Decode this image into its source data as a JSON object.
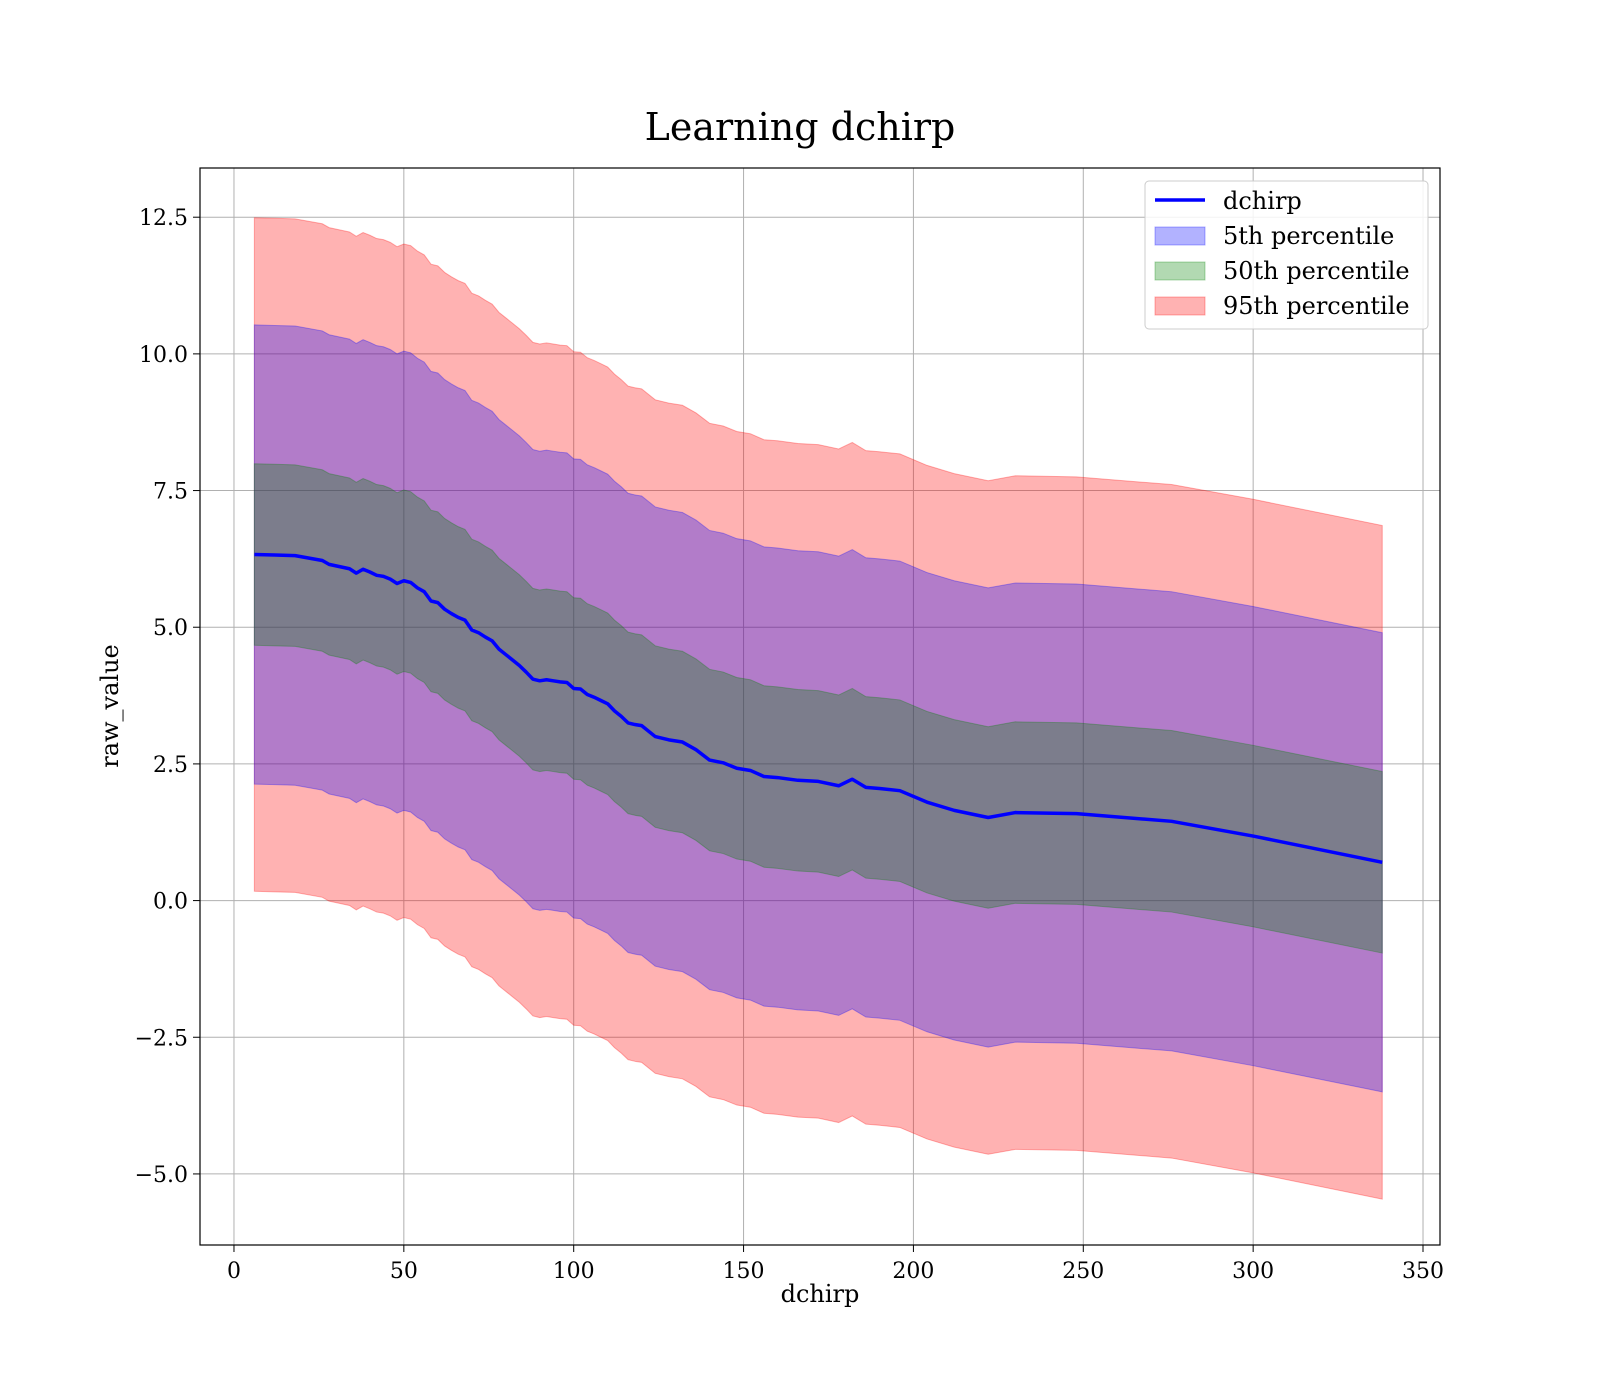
{
  "colors": {
    "line": "#0000ff",
    "band_5th": "#0000ff",
    "band_50th": "#008000",
    "band_95th": "#ff0000",
    "grid": "#b0b0b0"
  },
  "chart_data": {
    "type": "area",
    "title": "Learning dchirp",
    "xlabel": "dchirp",
    "ylabel": "raw_value",
    "xlim": [
      -10,
      355
    ],
    "ylim": [
      -6.3,
      13.4
    ],
    "xticks": [
      0,
      50,
      100,
      150,
      200,
      250,
      300,
      350
    ],
    "xtick_labels": [
      "0",
      "50",
      "100",
      "150",
      "200",
      "250",
      "300",
      "350"
    ],
    "yticks": [
      -5.0,
      -2.5,
      0.0,
      2.5,
      5.0,
      7.5,
      10.0,
      12.5
    ],
    "ytick_labels": [
      "−5.0",
      "−2.5",
      "0.0",
      "2.5",
      "5.0",
      "7.5",
      "10.0",
      "12.5"
    ],
    "grid": true,
    "legend_position": "top-right",
    "legend": [
      "dchirp",
      "5th percentile",
      "50th percentile",
      "95th percentile"
    ],
    "x": [
      6,
      12,
      18,
      26,
      28,
      34,
      36,
      38,
      40,
      42,
      44,
      46,
      48,
      50,
      52,
      54,
      56,
      58,
      60,
      62,
      64,
      66,
      68,
      70,
      72,
      74,
      76,
      78,
      80,
      82,
      84,
      86,
      88,
      90,
      92,
      94,
      96,
      98,
      100,
      102,
      104,
      106,
      108,
      110,
      112,
      114,
      116,
      118,
      120,
      124,
      128,
      132,
      136,
      140,
      144,
      148,
      152,
      156,
      160,
      166,
      172,
      178,
      182,
      186,
      190,
      196,
      204,
      212,
      222,
      230,
      248,
      276,
      300,
      338
    ],
    "series": [
      {
        "name": "dchirp",
        "values": [
          6.33,
          6.32,
          6.31,
          6.22,
          6.15,
          6.07,
          5.99,
          6.06,
          6.01,
          5.95,
          5.93,
          5.88,
          5.8,
          5.85,
          5.82,
          5.72,
          5.65,
          5.48,
          5.45,
          5.33,
          5.25,
          5.18,
          5.13,
          4.95,
          4.9,
          4.82,
          4.75,
          4.6,
          4.5,
          4.4,
          4.3,
          4.18,
          4.05,
          4.02,
          4.04,
          4.02,
          4.0,
          3.99,
          3.88,
          3.87,
          3.77,
          3.72,
          3.66,
          3.6,
          3.47,
          3.37,
          3.25,
          3.22,
          3.2,
          3.0,
          2.94,
          2.9,
          2.76,
          2.57,
          2.52,
          2.42,
          2.38,
          2.27,
          2.25,
          2.2,
          2.18,
          2.1,
          2.22,
          2.07,
          2.05,
          2.01,
          1.8,
          1.65,
          1.52,
          1.61,
          1.59,
          1.45,
          1.18,
          0.7
        ]
      },
      {
        "name": "50th percentile",
        "lower": [
          4.67,
          4.66,
          4.65,
          4.56,
          4.49,
          4.41,
          4.33,
          4.4,
          4.35,
          4.29,
          4.27,
          4.22,
          4.14,
          4.19,
          4.16,
          4.06,
          3.99,
          3.82,
          3.79,
          3.67,
          3.59,
          3.52,
          3.47,
          3.29,
          3.24,
          3.16,
          3.09,
          2.94,
          2.84,
          2.74,
          2.64,
          2.52,
          2.39,
          2.36,
          2.38,
          2.36,
          2.34,
          2.33,
          2.22,
          2.21,
          2.11,
          2.06,
          2.0,
          1.94,
          1.81,
          1.71,
          1.59,
          1.56,
          1.54,
          1.34,
          1.28,
          1.24,
          1.1,
          0.91,
          0.86,
          0.76,
          0.72,
          0.61,
          0.59,
          0.54,
          0.52,
          0.44,
          0.56,
          0.41,
          0.39,
          0.35,
          0.14,
          -0.01,
          -0.14,
          -0.05,
          -0.07,
          -0.21,
          -0.48,
          -0.96
        ],
        "upper": [
          7.99,
          7.98,
          7.97,
          7.88,
          7.81,
          7.73,
          7.65,
          7.72,
          7.67,
          7.61,
          7.59,
          7.54,
          7.46,
          7.51,
          7.48,
          7.38,
          7.31,
          7.14,
          7.11,
          6.99,
          6.91,
          6.84,
          6.79,
          6.61,
          6.56,
          6.48,
          6.41,
          6.26,
          6.16,
          6.06,
          5.96,
          5.84,
          5.71,
          5.68,
          5.7,
          5.68,
          5.66,
          5.65,
          5.54,
          5.53,
          5.43,
          5.38,
          5.32,
          5.26,
          5.13,
          5.03,
          4.91,
          4.88,
          4.86,
          4.66,
          4.6,
          4.56,
          4.42,
          4.23,
          4.18,
          4.08,
          4.04,
          3.93,
          3.91,
          3.86,
          3.84,
          3.76,
          3.88,
          3.73,
          3.71,
          3.67,
          3.46,
          3.31,
          3.18,
          3.27,
          3.25,
          3.11,
          2.84,
          2.36
        ]
      },
      {
        "name": "95th percentile",
        "lower": [
          0.17,
          0.16,
          0.15,
          0.06,
          -0.01,
          -0.09,
          -0.17,
          -0.1,
          -0.15,
          -0.21,
          -0.23,
          -0.28,
          -0.36,
          -0.31,
          -0.34,
          -0.44,
          -0.51,
          -0.68,
          -0.71,
          -0.83,
          -0.91,
          -0.98,
          -1.03,
          -1.21,
          -1.26,
          -1.34,
          -1.41,
          -1.56,
          -1.66,
          -1.76,
          -1.86,
          -1.98,
          -2.11,
          -2.14,
          -2.12,
          -2.14,
          -2.16,
          -2.17,
          -2.28,
          -2.29,
          -2.39,
          -2.44,
          -2.5,
          -2.56,
          -2.69,
          -2.79,
          -2.91,
          -2.94,
          -2.96,
          -3.16,
          -3.22,
          -3.26,
          -3.4,
          -3.59,
          -3.64,
          -3.74,
          -3.78,
          -3.89,
          -3.91,
          -3.96,
          -3.98,
          -4.06,
          -3.94,
          -4.09,
          -4.11,
          -4.15,
          -4.36,
          -4.51,
          -4.64,
          -4.55,
          -4.57,
          -4.71,
          -4.98,
          -5.46
        ],
        "upper": [
          12.49,
          12.48,
          12.47,
          12.38,
          12.31,
          12.23,
          12.15,
          12.22,
          12.17,
          12.11,
          12.09,
          12.04,
          11.96,
          12.01,
          11.98,
          11.88,
          11.81,
          11.64,
          11.61,
          11.49,
          11.41,
          11.34,
          11.29,
          11.11,
          11.06,
          10.98,
          10.91,
          10.76,
          10.66,
          10.56,
          10.46,
          10.34,
          10.21,
          10.18,
          10.2,
          10.18,
          10.16,
          10.15,
          10.04,
          10.03,
          9.93,
          9.88,
          9.82,
          9.76,
          9.63,
          9.53,
          9.41,
          9.38,
          9.36,
          9.16,
          9.1,
          9.06,
          8.92,
          8.73,
          8.68,
          8.58,
          8.54,
          8.43,
          8.41,
          8.36,
          8.34,
          8.26,
          8.38,
          8.23,
          8.21,
          8.17,
          7.96,
          7.81,
          7.68,
          7.77,
          7.75,
          7.61,
          7.34,
          6.86
        ]
      },
      {
        "name": "5th percentile",
        "lower": [
          2.13,
          2.12,
          2.11,
          2.02,
          1.95,
          1.87,
          1.79,
          1.86,
          1.81,
          1.75,
          1.73,
          1.68,
          1.6,
          1.65,
          1.62,
          1.52,
          1.45,
          1.28,
          1.25,
          1.13,
          1.05,
          0.98,
          0.93,
          0.75,
          0.7,
          0.62,
          0.55,
          0.4,
          0.3,
          0.2,
          0.1,
          -0.02,
          -0.15,
          -0.18,
          -0.16,
          -0.18,
          -0.2,
          -0.21,
          -0.32,
          -0.33,
          -0.43,
          -0.48,
          -0.54,
          -0.6,
          -0.73,
          -0.83,
          -0.95,
          -0.98,
          -1.0,
          -1.2,
          -1.26,
          -1.3,
          -1.44,
          -1.63,
          -1.68,
          -1.78,
          -1.82,
          -1.93,
          -1.95,
          -2.0,
          -2.02,
          -2.1,
          -1.98,
          -2.13,
          -2.15,
          -2.19,
          -2.4,
          -2.55,
          -2.68,
          -2.59,
          -2.61,
          -2.75,
          -3.02,
          -3.5
        ],
        "upper": [
          10.53,
          10.52,
          10.51,
          10.42,
          10.35,
          10.27,
          10.19,
          10.26,
          10.21,
          10.15,
          10.13,
          10.08,
          10.0,
          10.05,
          10.02,
          9.92,
          9.85,
          9.68,
          9.65,
          9.53,
          9.45,
          9.38,
          9.33,
          9.15,
          9.1,
          9.02,
          8.95,
          8.8,
          8.7,
          8.6,
          8.5,
          8.38,
          8.25,
          8.22,
          8.24,
          8.22,
          8.2,
          8.19,
          8.08,
          8.07,
          7.97,
          7.92,
          7.86,
          7.8,
          7.67,
          7.57,
          7.45,
          7.42,
          7.4,
          7.2,
          7.14,
          7.1,
          6.96,
          6.77,
          6.72,
          6.62,
          6.58,
          6.47,
          6.45,
          6.4,
          6.38,
          6.3,
          6.42,
          6.27,
          6.25,
          6.21,
          6.0,
          5.85,
          5.72,
          5.81,
          5.79,
          5.65,
          5.38,
          4.9
        ]
      }
    ]
  }
}
